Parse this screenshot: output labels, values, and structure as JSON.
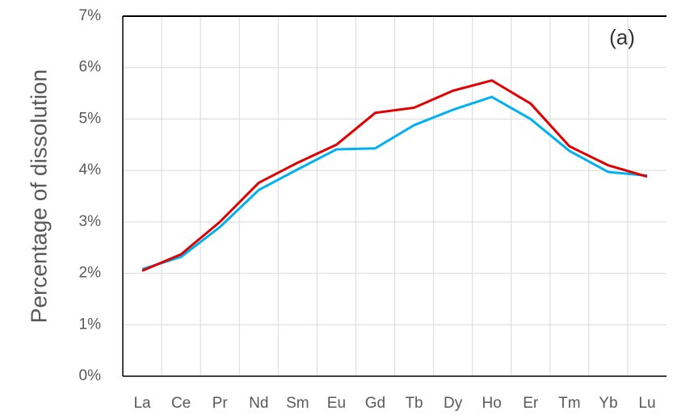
{
  "chart_data": {
    "type": "line",
    "y_label": "Percentage of dissolution",
    "annotation": "(a)",
    "categories": [
      "La",
      "Ce",
      "Pr",
      "Nd",
      "Sm",
      "Eu",
      "Gd",
      "Tb",
      "Dy",
      "Ho",
      "Er",
      "Tm",
      "Yb",
      "Lu"
    ],
    "series": [
      {
        "color": "#00b0f0",
        "values": [
          2.08,
          2.32,
          2.9,
          3.62,
          4.02,
          4.41,
          4.43,
          4.88,
          5.18,
          5.43,
          5.0,
          4.38,
          3.97,
          3.9
        ]
      },
      {
        "color": "#e00000",
        "values": [
          2.05,
          2.37,
          3.0,
          3.76,
          4.15,
          4.5,
          5.12,
          5.22,
          5.55,
          5.75,
          5.3,
          4.47,
          4.1,
          3.88
        ]
      }
    ],
    "ylim": [
      0,
      7
    ],
    "yticks": [
      {
        "value": 0,
        "label": "0%"
      },
      {
        "value": 1,
        "label": "1%"
      },
      {
        "value": 2,
        "label": "2%"
      },
      {
        "value": 3,
        "label": "3%"
      },
      {
        "value": 4,
        "label": "4%"
      },
      {
        "value": 5,
        "label": "5%"
      },
      {
        "value": 6,
        "label": "6%"
      },
      {
        "value": 7,
        "label": "7%"
      }
    ],
    "grid": true
  }
}
